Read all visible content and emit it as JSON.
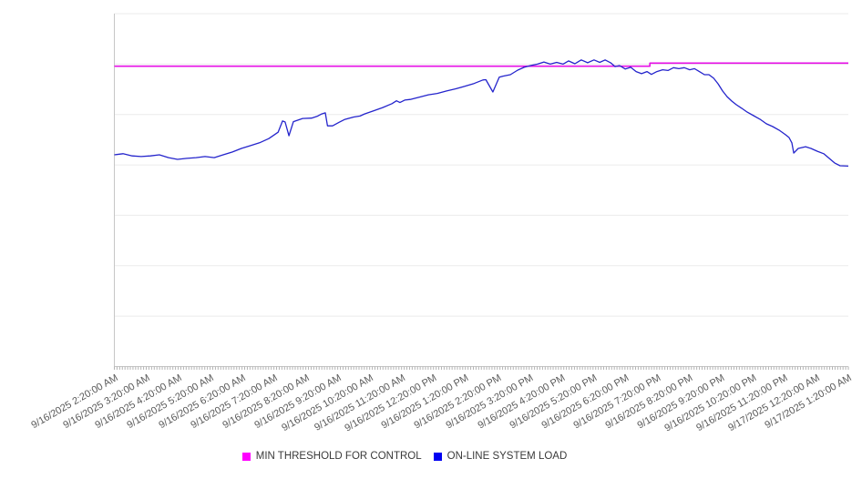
{
  "chart_data": {
    "type": "line",
    "title": "",
    "grid": true,
    "legend_position": "bottom-center",
    "x_axis": {
      "hours_span": 23,
      "minor_tick_count": 277,
      "labels": [
        "9/16/2025 2:20:00 AM",
        "9/16/2025 3:20:00 AM",
        "9/16/2025 4:20:00 AM",
        "9/16/2025 5:20:00 AM",
        "9/16/2025 6:20:00 AM",
        "9/16/2025 7:20:00 AM",
        "9/16/2025 8:20:00 AM",
        "9/16/2025 9:20:00 AM",
        "9/16/2025 10:20:00 AM",
        "9/16/2025 11:20:00 AM",
        "9/16/2025 12:20:00 PM",
        "9/16/2025 1:20:00 PM",
        "9/16/2025 2:20:00 PM",
        "9/16/2025 3:20:00 PM",
        "9/16/2025 4:20:00 PM",
        "9/16/2025 5:20:00 PM",
        "9/16/2025 6:20:00 PM",
        "9/16/2025 7:20:00 PM",
        "9/16/2025 8:20:00 PM",
        "9/16/2025 9:20:00 PM",
        "9/16/2025 10:20:00 PM",
        "9/16/2025 11:20:00 PM",
        "9/17/2025 12:20:00 AM",
        "9/17/2025 1:20:00 AM"
      ]
    },
    "y_axis": {
      "labels_visible": false,
      "range": [
        0,
        100
      ],
      "gridline_divisions": 7
    },
    "series": [
      {
        "name": "MIN THRESHOLD FOR CONTROL",
        "color": "#e60fe6",
        "legend_color": "#ff00ff",
        "points": [
          [
            0,
            85.1
          ],
          [
            16.78,
            85.1
          ],
          [
            16.78,
            86.0
          ],
          [
            23,
            86.0
          ]
        ]
      },
      {
        "name": "ON-LINE SYSTEM LOAD",
        "color": "#2424cc",
        "legend_color": "#0000f2",
        "points": [
          [
            0,
            60.0
          ],
          [
            0.27,
            60.3
          ],
          [
            0.56,
            59.7
          ],
          [
            0.84,
            59.5
          ],
          [
            1.13,
            59.7
          ],
          [
            1.41,
            60.0
          ],
          [
            1.7,
            59.2
          ],
          [
            1.98,
            58.7
          ],
          [
            2.27,
            59.0
          ],
          [
            2.56,
            59.2
          ],
          [
            2.84,
            59.5
          ],
          [
            3.13,
            59.2
          ],
          [
            3.41,
            60.0
          ],
          [
            3.7,
            60.8
          ],
          [
            3.98,
            61.8
          ],
          [
            4.27,
            62.6
          ],
          [
            4.55,
            63.4
          ],
          [
            4.84,
            64.6
          ],
          [
            5.13,
            66.4
          ],
          [
            5.27,
            69.6
          ],
          [
            5.35,
            69.3
          ],
          [
            5.47,
            65.4
          ],
          [
            5.61,
            69.4
          ],
          [
            5.9,
            70.3
          ],
          [
            6.18,
            70.4
          ],
          [
            6.35,
            70.9
          ],
          [
            6.5,
            71.6
          ],
          [
            6.61,
            71.9
          ],
          [
            6.68,
            68.2
          ],
          [
            6.84,
            68.2
          ],
          [
            7.04,
            69.2
          ],
          [
            7.21,
            70.0
          ],
          [
            7.5,
            70.7
          ],
          [
            7.7,
            71.0
          ],
          [
            7.84,
            71.6
          ],
          [
            8.13,
            72.5
          ],
          [
            8.41,
            73.4
          ],
          [
            8.7,
            74.5
          ],
          [
            8.84,
            75.3
          ],
          [
            8.95,
            74.8
          ],
          [
            9.1,
            75.5
          ],
          [
            9.27,
            75.7
          ],
          [
            9.55,
            76.3
          ],
          [
            9.84,
            77.0
          ],
          [
            10.12,
            77.4
          ],
          [
            10.41,
            78.1
          ],
          [
            10.7,
            78.7
          ],
          [
            10.98,
            79.4
          ],
          [
            11.27,
            80.2
          ],
          [
            11.55,
            81.2
          ],
          [
            11.64,
            81.3
          ],
          [
            11.86,
            77.8
          ],
          [
            12.06,
            82.0
          ],
          [
            12.18,
            82.3
          ],
          [
            12.41,
            82.7
          ],
          [
            12.64,
            84.0
          ],
          [
            12.84,
            84.8
          ],
          [
            13.04,
            85.3
          ],
          [
            13.26,
            85.7
          ],
          [
            13.46,
            86.3
          ],
          [
            13.66,
            85.7
          ],
          [
            13.86,
            86.2
          ],
          [
            14.06,
            85.7
          ],
          [
            14.23,
            86.6
          ],
          [
            14.43,
            85.8
          ],
          [
            14.63,
            86.9
          ],
          [
            14.83,
            86.1
          ],
          [
            15.03,
            86.9
          ],
          [
            15.21,
            86.2
          ],
          [
            15.38,
            86.9
          ],
          [
            15.55,
            86.1
          ],
          [
            15.69,
            85.0
          ],
          [
            15.83,
            85.3
          ],
          [
            16.01,
            84.3
          ],
          [
            16.18,
            84.8
          ],
          [
            16.35,
            83.6
          ],
          [
            16.52,
            83.0
          ],
          [
            16.69,
            83.6
          ],
          [
            16.83,
            82.8
          ],
          [
            17.0,
            83.6
          ],
          [
            17.18,
            84.1
          ],
          [
            17.35,
            83.9
          ],
          [
            17.52,
            84.7
          ],
          [
            17.69,
            84.4
          ],
          [
            17.86,
            84.7
          ],
          [
            18.03,
            84.1
          ],
          [
            18.18,
            84.4
          ],
          [
            18.35,
            83.5
          ],
          [
            18.49,
            82.7
          ],
          [
            18.63,
            82.7
          ],
          [
            18.78,
            81.7
          ],
          [
            18.92,
            80.1
          ],
          [
            19.06,
            78.1
          ],
          [
            19.2,
            76.5
          ],
          [
            19.35,
            75.2
          ],
          [
            19.49,
            74.2
          ],
          [
            19.66,
            73.2
          ],
          [
            19.83,
            72.1
          ],
          [
            20.03,
            71.1
          ],
          [
            20.23,
            70.1
          ],
          [
            20.43,
            68.8
          ],
          [
            20.63,
            68.0
          ],
          [
            20.83,
            67.0
          ],
          [
            21.03,
            65.7
          ],
          [
            21.14,
            64.9
          ],
          [
            21.23,
            63.4
          ],
          [
            21.29,
            60.5
          ],
          [
            21.43,
            61.8
          ],
          [
            21.66,
            62.3
          ],
          [
            21.83,
            61.8
          ],
          [
            22.03,
            61.0
          ],
          [
            22.23,
            60.3
          ],
          [
            22.4,
            59.0
          ],
          [
            22.57,
            57.7
          ],
          [
            22.74,
            56.9
          ],
          [
            23,
            56.8
          ]
        ]
      }
    ]
  }
}
